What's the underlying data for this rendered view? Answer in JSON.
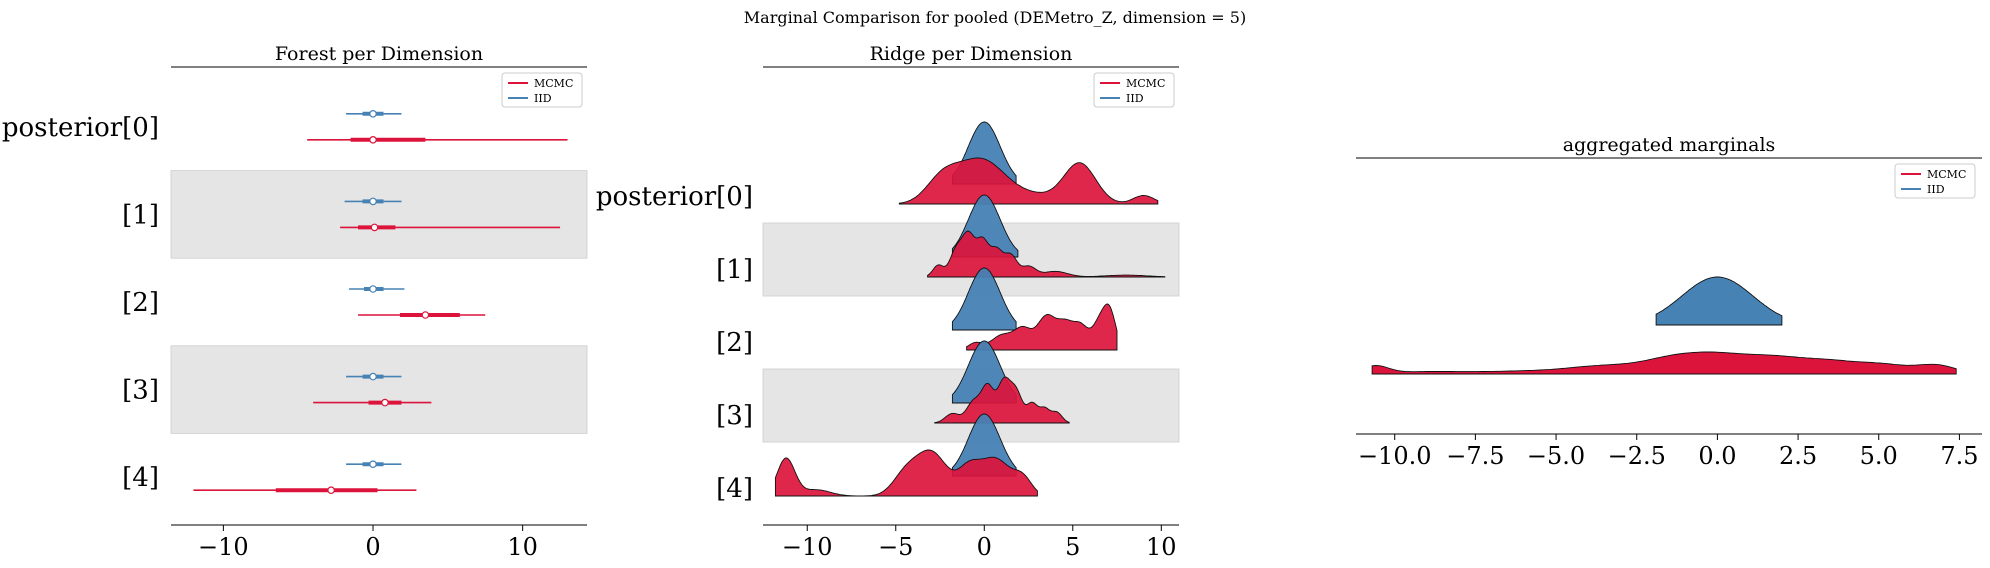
{
  "figure": {
    "suptitle": "Marginal Comparison for pooled (DEMetro_Z, dimension = 5)"
  },
  "colors": {
    "mcmc": "#dc143c",
    "iid": "#4682b4",
    "band": "#e5e5e5"
  },
  "chart_data": [
    {
      "type": "forest",
      "title": "Forest per Dimension",
      "row_labels": [
        "posterior[0]",
        "[1]",
        "[2]",
        "[3]",
        "[4]"
      ],
      "shaded_rows": [
        1,
        3
      ],
      "xlim": [
        -13.5,
        14.3
      ],
      "xticks": [
        -10,
        0,
        10
      ],
      "xtick_labels": [
        "−10",
        "0",
        "10"
      ],
      "legend": [
        "MCMC",
        "IID"
      ],
      "series": [
        {
          "name": "MCMC",
          "color": "#dc143c",
          "rows": [
            {
              "median": 0.0,
              "hdi94": [
                -4.4,
                13.0
              ],
              "hdi50": [
                -1.5,
                3.5
              ]
            },
            {
              "median": 0.1,
              "hdi94": [
                -2.2,
                12.5
              ],
              "hdi50": [
                -1.0,
                1.5
              ]
            },
            {
              "median": 3.5,
              "hdi94": [
                -1.0,
                7.5
              ],
              "hdi50": [
                1.8,
                5.8
              ]
            },
            {
              "median": 0.8,
              "hdi94": [
                -4.0,
                3.9
              ],
              "hdi50": [
                -0.3,
                1.9
              ]
            },
            {
              "median": -2.8,
              "hdi94": [
                -12.0,
                2.9
              ],
              "hdi50": [
                -6.5,
                0.3
              ]
            }
          ]
        },
        {
          "name": "IID",
          "color": "#4682b4",
          "rows": [
            {
              "median": 0.0,
              "hdi94": [
                -1.8,
                1.9
              ],
              "hdi50": [
                -0.7,
                0.7
              ]
            },
            {
              "median": 0.0,
              "hdi94": [
                -1.9,
                1.9
              ],
              "hdi50": [
                -0.7,
                0.7
              ]
            },
            {
              "median": 0.0,
              "hdi94": [
                -1.6,
                2.1
              ],
              "hdi50": [
                -0.6,
                0.7
              ]
            },
            {
              "median": 0.0,
              "hdi94": [
                -1.8,
                1.9
              ],
              "hdi50": [
                -0.7,
                0.7
              ]
            },
            {
              "median": 0.0,
              "hdi94": [
                -1.8,
                1.9
              ],
              "hdi50": [
                -0.7,
                0.7
              ]
            }
          ]
        }
      ]
    },
    {
      "type": "ridgeplot",
      "title": "Ridge per Dimension",
      "row_labels": [
        "posterior[0]",
        "[1]",
        "[2]",
        "[3]",
        "[4]"
      ],
      "shaded_rows": [
        1,
        3
      ],
      "xlim": [
        -12.5,
        11.0
      ],
      "xticks": [
        -10,
        -5,
        0,
        5,
        10
      ],
      "xtick_labels": [
        "−10",
        "−5",
        "0",
        "5",
        "10"
      ],
      "legend": [
        "MCMC",
        "IID"
      ],
      "series": [
        {
          "name": "IID",
          "color": "#4682b4",
          "rows": [
            {
              "range": [
                -1.8,
                1.8
              ],
              "peaks": [
                [
                  0.0,
                  1.0,
                  0.9
                ]
              ]
            },
            {
              "range": [
                -1.8,
                1.9
              ],
              "peaks": [
                [
                  0.0,
                  1.0,
                  0.9
                ]
              ]
            },
            {
              "range": [
                -1.8,
                1.8
              ],
              "peaks": [
                [
                  0.0,
                  1.0,
                  0.9
                ]
              ]
            },
            {
              "range": [
                -1.8,
                1.8
              ],
              "peaks": [
                [
                  0.0,
                  1.0,
                  0.9
                ]
              ]
            },
            {
              "range": [
                -1.8,
                1.8
              ],
              "peaks": [
                [
                  0.0,
                  1.0,
                  0.9
                ]
              ]
            }
          ]
        },
        {
          "name": "MCMC",
          "color": "#dc143c",
          "rows": [
            {
              "range": [
                -4.8,
                9.8
              ],
              "peaks": [
                [
                  -0.2,
                  0.42,
                  1.4
                ],
                [
                  -2.4,
                  0.2,
                  0.9
                ],
                [
                  5.4,
                  0.38,
                  0.9
                ],
                [
                  3.0,
                  0.07,
                  1.2
                ],
                [
                  9.0,
                  0.08,
                  0.6
                ]
              ]
            },
            {
              "range": [
                -3.2,
                10.2
              ],
              "peaks": [
                [
                  -2.6,
                  0.25,
                  0.3
                ],
                [
                  -1.6,
                  0.55,
                  0.35
                ],
                [
                  -0.9,
                  0.85,
                  0.35
                ],
                [
                  -0.1,
                  0.75,
                  0.35
                ],
                [
                  0.7,
                  0.55,
                  0.35
                ],
                [
                  1.5,
                  0.45,
                  0.35
                ],
                [
                  2.5,
                  0.22,
                  0.4
                ],
                [
                  4.0,
                  0.12,
                  0.7
                ],
                [
                  8.0,
                  0.04,
                  1.2
                ]
              ]
            },
            {
              "range": [
                -1.0,
                7.5
              ],
              "peaks": [
                [
                  -0.5,
                  0.12,
                  0.4
                ],
                [
                  1.0,
                  0.25,
                  0.6
                ],
                [
                  2.2,
                  0.35,
                  0.5
                ],
                [
                  3.5,
                  0.55,
                  0.5
                ],
                [
                  4.6,
                  0.45,
                  0.5
                ],
                [
                  5.5,
                  0.35,
                  0.4
                ],
                [
                  6.5,
                  0.45,
                  0.4
                ],
                [
                  7.1,
                  0.6,
                  0.35
                ]
              ]
            },
            {
              "range": [
                -2.8,
                4.8
              ],
              "peaks": [
                [
                  -1.8,
                  0.2,
                  0.4
                ],
                [
                  -0.6,
                  0.45,
                  0.4
                ],
                [
                  0.2,
                  0.75,
                  0.35
                ],
                [
                  1.1,
                  0.85,
                  0.35
                ],
                [
                  1.8,
                  0.65,
                  0.35
                ],
                [
                  2.7,
                  0.4,
                  0.3
                ],
                [
                  3.4,
                  0.3,
                  0.3
                ],
                [
                  4.1,
                  0.22,
                  0.3
                ]
              ]
            },
            {
              "range": [
                -11.8,
                3.0
              ],
              "peaks": [
                [
                  -11.2,
                  0.3,
                  0.5
                ],
                [
                  -9.5,
                  0.05,
                  0.8
                ],
                [
                  -3.0,
                  0.35,
                  0.9
                ],
                [
                  -4.5,
                  0.15,
                  0.7
                ],
                [
                  0.6,
                  0.3,
                  0.9
                ],
                [
                  -0.9,
                  0.18,
                  0.6
                ],
                [
                  2.2,
                  0.12,
                  0.5
                ]
              ]
            }
          ]
        }
      ]
    },
    {
      "type": "ridgeplot",
      "title": "aggregated marginals",
      "row_labels": [],
      "xlim": [
        -11.2,
        8.2
      ],
      "xticks": [
        -10,
        -7.5,
        -5,
        -2.5,
        0,
        2.5,
        5,
        7.5
      ],
      "xtick_labels": [
        "−10.0",
        "−7.5",
        "−5.0",
        "−2.5",
        "0.0",
        "2.5",
        "5.0",
        "7.5"
      ],
      "legend": [
        "MCMC",
        "IID"
      ],
      "series": [
        {
          "name": "IID",
          "color": "#4682b4",
          "rows": [
            {
              "range": [
                -1.9,
                2.0
              ],
              "peaks": [
                [
                  0.0,
                  1.0,
                  1.1
                ]
              ]
            }
          ]
        },
        {
          "name": "MCMC",
          "color": "#dc143c",
          "rows": [
            {
              "range": [
                -10.7,
                7.4
              ],
              "peaks": [
                [
                  -10.6,
                  0.2,
                  0.4
                ],
                [
                  -9.0,
                  0.06,
                  1.2
                ],
                [
                  -6.0,
                  0.07,
                  1.3
                ],
                [
                  -3.5,
                  0.2,
                  1.1
                ],
                [
                  -1.5,
                  0.3,
                  0.9
                ],
                [
                  0.0,
                  0.45,
                  1.0
                ],
                [
                  1.8,
                  0.35,
                  0.9
                ],
                [
                  3.5,
                  0.3,
                  0.9
                ],
                [
                  5.2,
                  0.22,
                  0.8
                ],
                [
                  6.8,
                  0.22,
                  0.6
                ]
              ]
            }
          ]
        }
      ]
    }
  ]
}
